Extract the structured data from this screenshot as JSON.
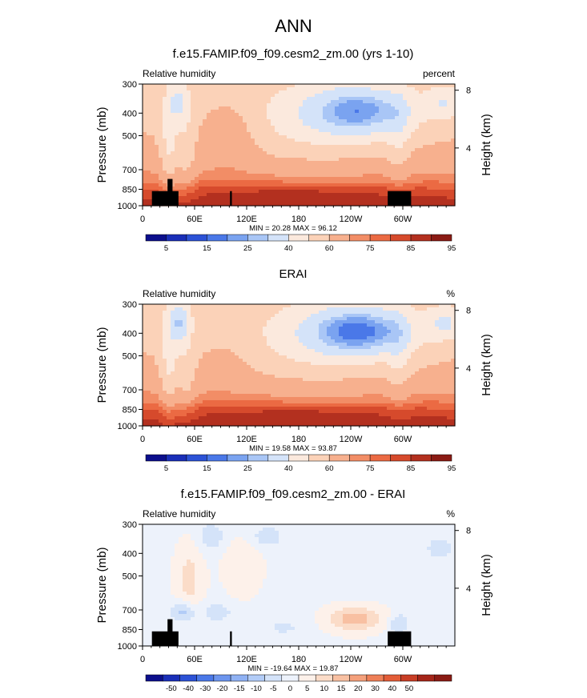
{
  "page": {
    "main_title": "ANN"
  },
  "colors": {
    "rh_scale": [
      "#0c0f8c",
      "#1a2fb8",
      "#2c52d6",
      "#4a78e8",
      "#7aa3f0",
      "#a9c6f6",
      "#d4e3f9",
      "#fbe9dd",
      "#fbd2b8",
      "#f7b08e",
      "#f28d66",
      "#eb6a43",
      "#d64a2c",
      "#b3301f",
      "#8a1b14"
    ],
    "diff_scale": [
      "#0c0f8c",
      "#1a2fb8",
      "#2c52d6",
      "#4a78e8",
      "#6c95ee",
      "#8fb1f3",
      "#b2ccf7",
      "#d4e3f9",
      "#edf2fb",
      "#fdf1ea",
      "#fbdcc8",
      "#f8c0a2",
      "#f4a07b",
      "#ee7f57",
      "#e35d38",
      "#c83e25",
      "#a52519",
      "#8a1b14"
    ]
  },
  "panels": [
    {
      "title": "f.e15.FAMIP.f09_f09.cesm2_zm.00 (yrs 1-10)",
      "left_label": "Relative humidity",
      "right_label": "percent",
      "y_axis_label": "Pressure (mb)",
      "right_axis_label": "Height (km)",
      "stats": "MIN =  20.28   MAX =  96.12",
      "colorbar_labels": [
        "5",
        "15",
        "25",
        "40",
        "60",
        "75",
        "85",
        "95"
      ],
      "variant": "model"
    },
    {
      "title": "ERAI",
      "left_label": "Relative humidity",
      "right_label": "%",
      "y_axis_label": "Pressure (mb)",
      "right_axis_label": "Height (km)",
      "stats": "MIN =  19.58   MAX =  93.87",
      "colorbar_labels": [
        "5",
        "15",
        "25",
        "40",
        "60",
        "75",
        "85",
        "95"
      ],
      "variant": "obs"
    },
    {
      "title": "f.e15.FAMIP.f09_f09.cesm2_zm.00 - ERAI",
      "left_label": "Relative humidity",
      "right_label": "%",
      "y_axis_label": "Pressure (mb)",
      "right_axis_label": "Height (km)",
      "stats": "MIN = -19.64   MAX =  19.87",
      "colorbar_labels": [
        "-50",
        "-40",
        "-30",
        "-20",
        "-15",
        "-10",
        "-5",
        "0",
        "5",
        "10",
        "15",
        "20",
        "30",
        "40",
        "50"
      ],
      "variant": "diff"
    }
  ],
  "chart_data": {
    "type": "heatmap",
    "x_ticks": [
      "0",
      "60E",
      "120E",
      "180",
      "120W",
      "60W"
    ],
    "x_tick_lon": [
      0,
      60,
      120,
      180,
      240,
      300
    ],
    "x_range_deg": [
      0,
      360
    ],
    "y_ticks": [
      "300",
      "400",
      "500",
      "700",
      "850",
      "1000"
    ],
    "y_tick_values": [
      300,
      400,
      500,
      700,
      850,
      1000
    ],
    "y_range_mb": [
      300,
      1000
    ],
    "height_ticks": [
      "4",
      "8"
    ],
    "height_values_km": [
      4,
      8
    ],
    "rh_levels": [
      5,
      10,
      15,
      20,
      25,
      30,
      40,
      50,
      60,
      70,
      75,
      80,
      85,
      90,
      95
    ],
    "diff_levels": [
      -50,
      -40,
      -30,
      -20,
      -15,
      -10,
      -5,
      0,
      5,
      10,
      15,
      20,
      30,
      40,
      50
    ]
  }
}
